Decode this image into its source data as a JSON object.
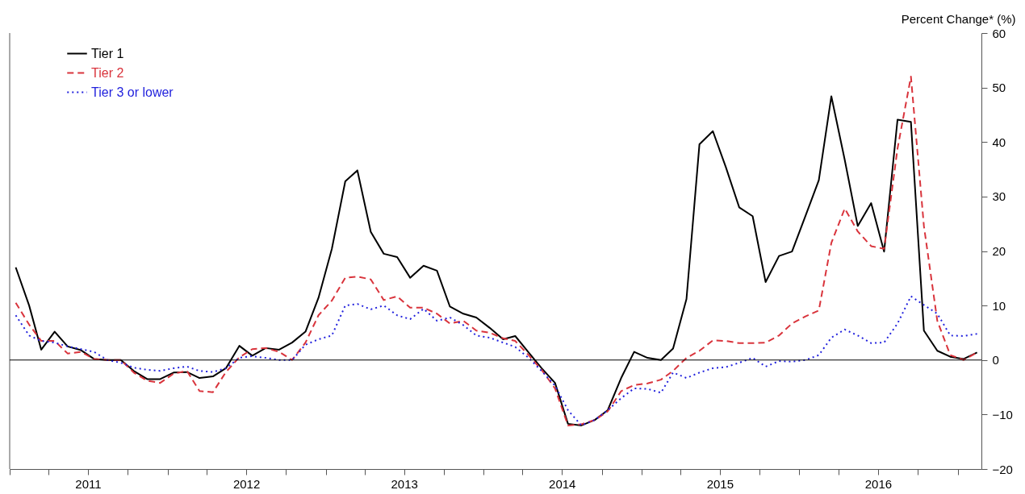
{
  "chart_data": {
    "type": "line",
    "ylabel": "Percent Change* (%)",
    "legend": "top left",
    "grid": false,
    "x": [
      "2011-01-15",
      "2011-02-15",
      "2011-03-15",
      "2011-04-15",
      "2011-05-15",
      "2011-06-15",
      "2011-07-15",
      "2011-08-15",
      "2011-09-15",
      "2011-10-15",
      "2011-11-15",
      "2011-12-15",
      "2012-01-15",
      "2012-02-15",
      "2012-03-15",
      "2012-04-15",
      "2012-05-15",
      "2012-06-15",
      "2012-07-15",
      "2012-08-15",
      "2012-09-15",
      "2012-10-15",
      "2012-11-15",
      "2012-12-15",
      "2013-01-15",
      "2013-02-15",
      "2013-03-15",
      "2013-04-15",
      "2013-05-15",
      "2013-06-15",
      "2013-07-15",
      "2013-08-15",
      "2013-09-15",
      "2013-10-15",
      "2013-11-15",
      "2013-12-15",
      "2014-01-15",
      "2014-02-15",
      "2014-03-15",
      "2014-04-15",
      "2014-05-15",
      "2014-06-15",
      "2014-07-15",
      "2014-08-15",
      "2014-09-15",
      "2014-10-15",
      "2014-11-15",
      "2014-12-15",
      "2015-01-15",
      "2015-02-15",
      "2015-03-15",
      "2015-04-15",
      "2015-05-15",
      "2015-06-15",
      "2015-07-15",
      "2015-08-15",
      "2015-09-15",
      "2015-10-15",
      "2015-11-15",
      "2015-12-15",
      "2016-01-15",
      "2016-02-15",
      "2016-03-15",
      "2016-04-15",
      "2016-05-15",
      "2016-06-15",
      "2016-07-15",
      "2016-08-15",
      "2016-09-15",
      "2016-10-15",
      "2016-11-15",
      "2016-12-15",
      "2017-01-15",
      "2017-02-15"
    ],
    "series": [
      {
        "name": "Tier 1",
        "color": "#000000",
        "line_style": "solid",
        "values": [
          17,
          10,
          1.9,
          5.2,
          2.5,
          1.8,
          0.2,
          0,
          0,
          -2,
          -3.5,
          -3.5,
          -2.3,
          -2.2,
          -3.3,
          -3,
          -1.5,
          2.6,
          0.8,
          2.2,
          1.9,
          3.2,
          5.2,
          11.4,
          20.4,
          32.8,
          34.8,
          23.5,
          19.5,
          18.9,
          15.1,
          17.3,
          16.4,
          9.8,
          8.5,
          7.8,
          5.9,
          3.8,
          4.4,
          1.4,
          -1.5,
          -4.2,
          -11.7,
          -12,
          -11,
          -9.2,
          -3.3,
          1.5,
          0.4,
          0,
          2.1,
          11.2,
          39.6,
          42,
          35.4,
          28,
          26.4,
          14.3,
          19.1,
          19.9,
          26.4,
          33,
          48.4,
          36.7,
          24.6,
          28.8,
          19.9,
          44.1,
          43.7,
          5.4,
          1.7,
          0.6,
          0.2,
          1.4
        ]
      },
      {
        "name": "Tier 2",
        "color": "#d9343c",
        "line_style": "dashed",
        "values": [
          10.5,
          6.5,
          3.5,
          3.5,
          1.2,
          1.5,
          0.2,
          0,
          0,
          -2.3,
          -3.8,
          -4.2,
          -2.5,
          -2,
          -5.7,
          -5.9,
          -2.2,
          0.5,
          2,
          2.2,
          1.5,
          0,
          3.2,
          8.2,
          10.9,
          15.1,
          15.3,
          14.8,
          11,
          11.7,
          9.6,
          9.6,
          8.5,
          6.7,
          7.2,
          5.4,
          5,
          4,
          3.5,
          0.9,
          -1.8,
          -5.2,
          -12,
          -11.8,
          -11,
          -9.4,
          -5.7,
          -4.6,
          -4.3,
          -3.6,
          -2,
          0.4,
          1.7,
          3.6,
          3.5,
          3.1,
          3.1,
          3.2,
          4.5,
          6.7,
          8,
          9.1,
          21.5,
          27.8,
          23.6,
          20.9,
          20.4,
          38.8,
          52,
          24.6,
          7.2,
          0.9,
          0,
          1.4
        ]
      },
      {
        "name": "Tier 3 or lower",
        "color": "#2222dd",
        "line_style": "dotted",
        "values": [
          8.2,
          4.5,
          3.5,
          3.2,
          2.5,
          2,
          1.5,
          0,
          -0.5,
          -1.4,
          -1.8,
          -2,
          -1.5,
          -1.2,
          -2,
          -2.2,
          -1.5,
          0.4,
          0.7,
          0.4,
          0,
          0,
          2.8,
          3.8,
          4.5,
          10,
          10.3,
          9.3,
          10,
          8.2,
          7.5,
          9.4,
          7.2,
          7.8,
          6.4,
          4.5,
          4.1,
          3.2,
          2.4,
          0.4,
          -2,
          -4.7,
          -9.2,
          -12,
          -11,
          -9.2,
          -7,
          -5.2,
          -5.3,
          -6,
          -2.3,
          -3.3,
          -2.3,
          -1.5,
          -1.3,
          -0.5,
          0.4,
          -1.2,
          -0.2,
          -0.3,
          0,
          0.9,
          4.1,
          5.6,
          4.5,
          3.1,
          3.2,
          6.7,
          11.7,
          10.1,
          8.5,
          4.5,
          4.4,
          4.8
        ]
      }
    ],
    "xlim": [
      "2011-01-01",
      "2017-02-25"
    ],
    "xticks": [
      {
        "value": "2011-01-01",
        "label": null
      },
      {
        "value": "2011-04-01",
        "label": null
      },
      {
        "value": "2011-07-01",
        "label": "2011"
      },
      {
        "value": "2011-10-01",
        "label": null
      },
      {
        "value": "2012-01-01",
        "label": null
      },
      {
        "value": "2012-04-01",
        "label": null
      },
      {
        "value": "2012-07-01",
        "label": "2012"
      },
      {
        "value": "2012-10-01",
        "label": null
      },
      {
        "value": "2013-01-01",
        "label": null
      },
      {
        "value": "2013-04-01",
        "label": null
      },
      {
        "value": "2013-07-01",
        "label": "2013"
      },
      {
        "value": "2013-10-01",
        "label": null
      },
      {
        "value": "2014-01-01",
        "label": null
      },
      {
        "value": "2014-04-01",
        "label": null
      },
      {
        "value": "2014-07-01",
        "label": "2014"
      },
      {
        "value": "2014-10-01",
        "label": null
      },
      {
        "value": "2015-01-01",
        "label": null
      },
      {
        "value": "2015-04-01",
        "label": null
      },
      {
        "value": "2015-07-01",
        "label": "2015"
      },
      {
        "value": "2015-10-01",
        "label": null
      },
      {
        "value": "2016-01-01",
        "label": null
      },
      {
        "value": "2016-04-01",
        "label": null
      },
      {
        "value": "2016-07-01",
        "label": "2016"
      },
      {
        "value": "2016-10-01",
        "label": null
      },
      {
        "value": "2017-01-01",
        "label": null
      }
    ],
    "ylim": [
      -20,
      60
    ],
    "yticks": [
      -20,
      -10,
      0,
      10,
      20,
      30,
      40,
      50,
      60
    ],
    "ref_lines": [
      {
        "axis": "y",
        "value": 0,
        "label": null,
        "color": "#000000",
        "line_style": "solid"
      }
    ]
  }
}
